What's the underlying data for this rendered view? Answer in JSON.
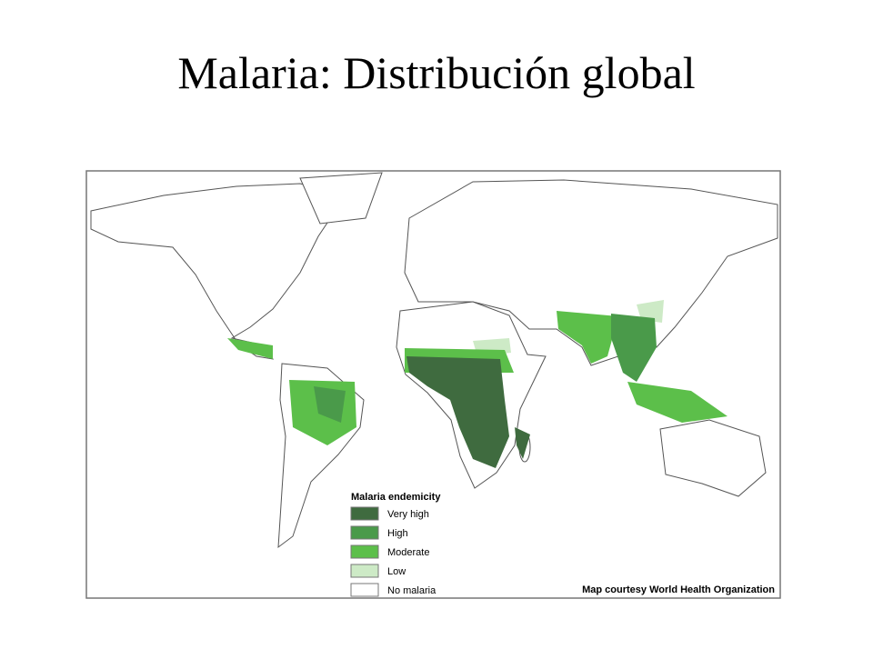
{
  "title": "Malaria: Distribución global",
  "map": {
    "legend": {
      "title": "Malaria endemicity",
      "items": [
        {
          "label": "Very high",
          "color": "#3f6b3f"
        },
        {
          "label": "High",
          "color": "#4a9a4a"
        },
        {
          "label": "Moderate",
          "color": "#5cbf4a"
        },
        {
          "label": "Low",
          "color": "#cdeac6"
        },
        {
          "label": "No malaria",
          "color": "#ffffff"
        }
      ]
    },
    "credit": "Map courtesy World Health Organization"
  }
}
